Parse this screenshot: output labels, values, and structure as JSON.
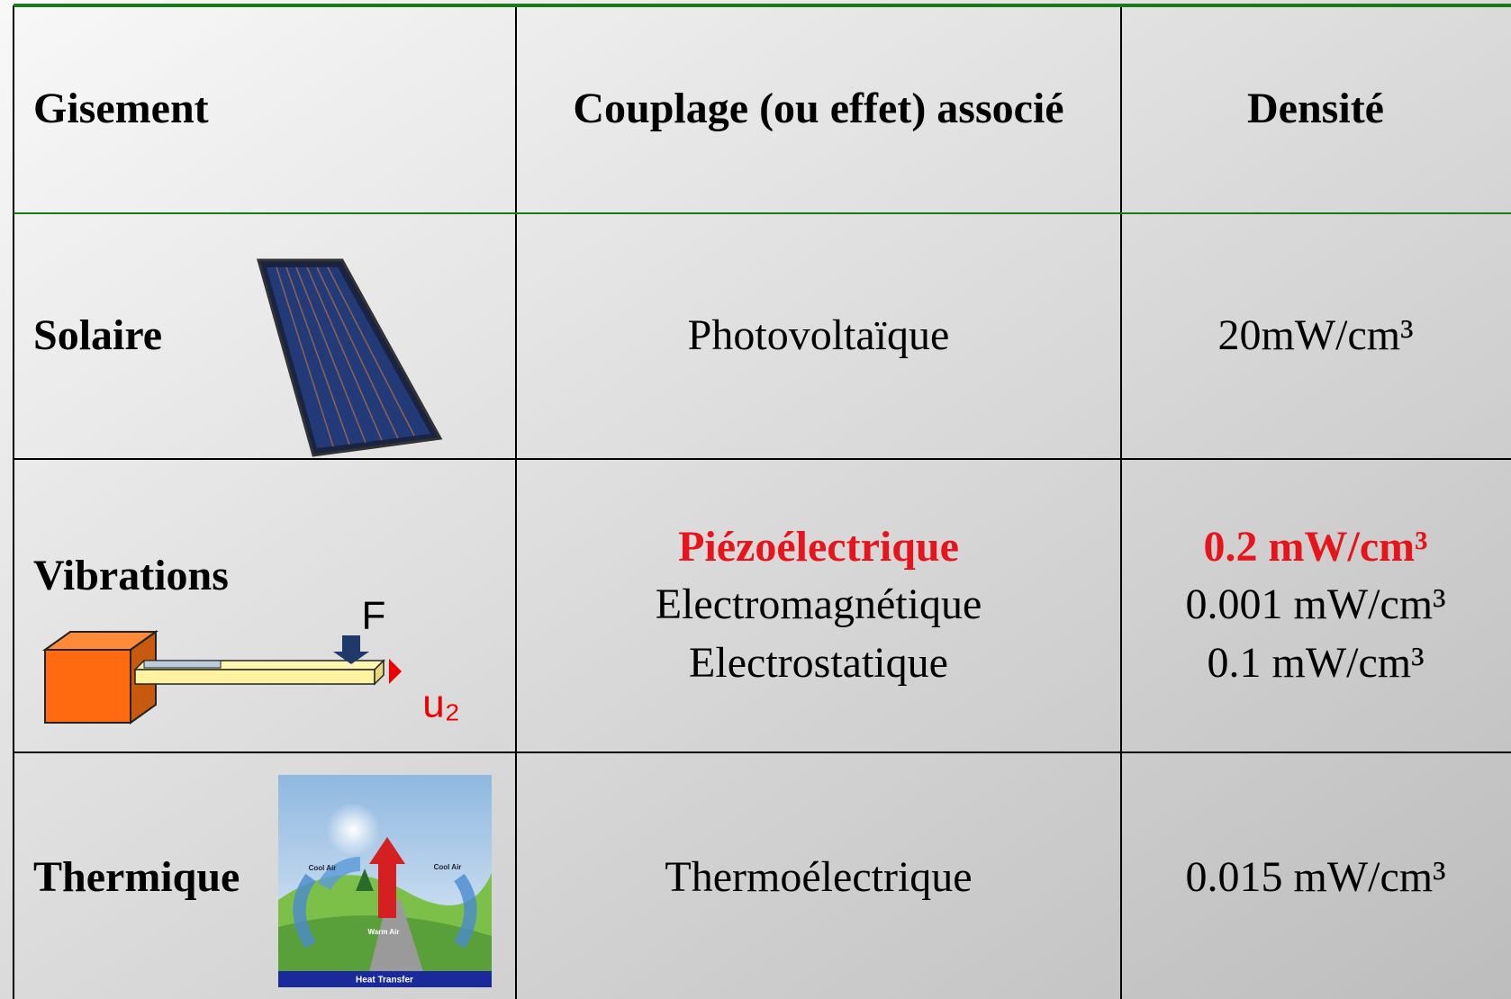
{
  "table": {
    "header": [
      "Gisement",
      "Couplage (ou effet) associé",
      "Densité"
    ],
    "rows": [
      {
        "source": "Solaire",
        "couplings": [
          "Photovoltaïque"
        ],
        "densities": [
          "20mW/cm³"
        ]
      },
      {
        "source": "Vibrations",
        "couplings": [
          "Piézoélectrique",
          "Electromagnétique",
          "Electrostatique"
        ],
        "densities": [
          "0.2 mW/cm³",
          "0.001 mW/cm³",
          "0.1 mW/cm³"
        ]
      },
      {
        "source": "Thermique",
        "couplings": [
          "Thermoélectrique"
        ],
        "densities": [
          "0.015 mW/cm³"
        ]
      }
    ]
  },
  "figures": {
    "vibration": {
      "force": "F",
      "displacement": "u₂"
    },
    "thermal": {
      "left": "Cool Air",
      "right": "Cool Air",
      "center": "Warm Air",
      "caption": "Heat Transfer"
    }
  }
}
